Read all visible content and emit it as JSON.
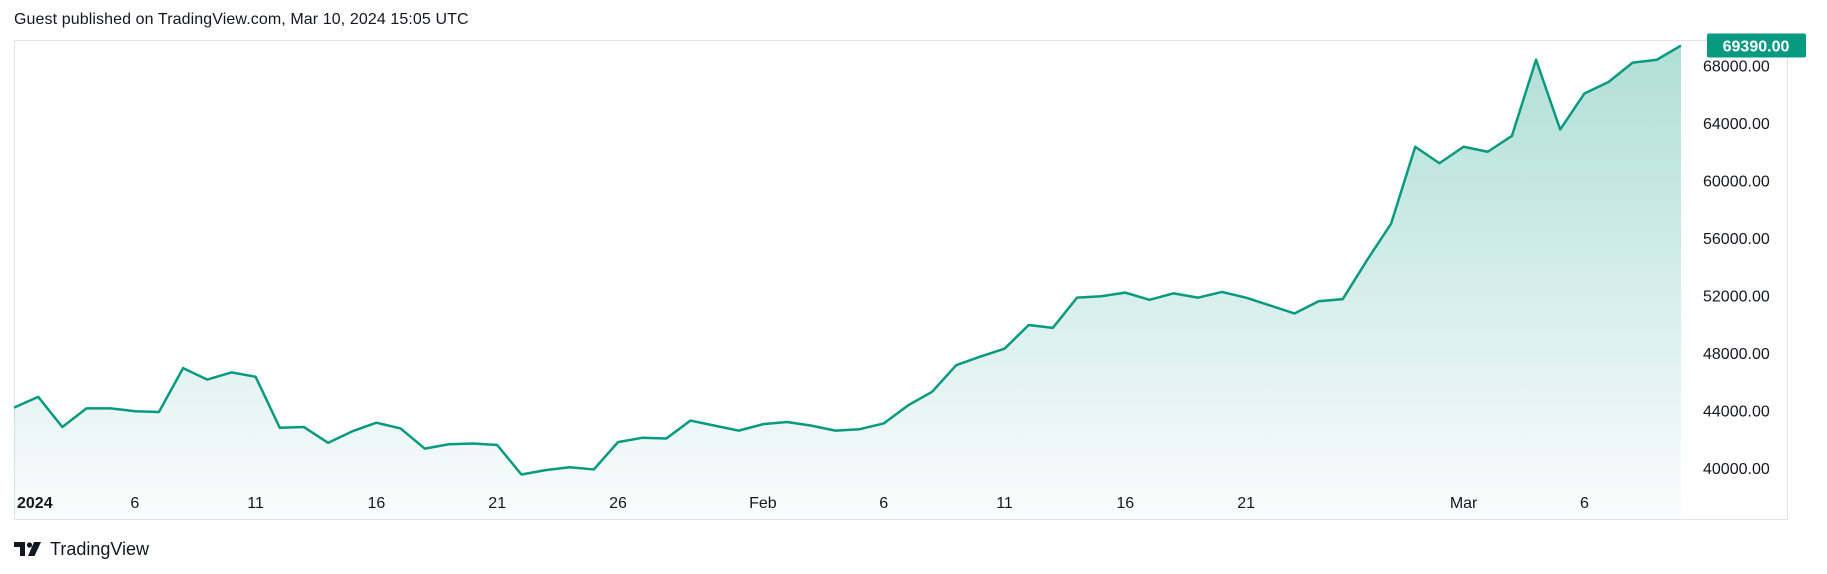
{
  "header": {
    "text": "Guest published on TradingView.com, Mar 10, 2024 15:05 UTC"
  },
  "footer": {
    "brand": "TradingView",
    "logo_icon": "tradingview-logo-icon"
  },
  "colors": {
    "line": "#089981",
    "fill_top": "#089981",
    "label_bg": "#089981",
    "text": "#131722",
    "border": "#e0e3eb"
  },
  "last_price_label": "69390.00",
  "chart_data": {
    "type": "area",
    "title": "",
    "xlabel": "",
    "ylabel": "",
    "ylim": [
      39200,
      70000
    ],
    "y_ticks": [
      "40000.00",
      "44000.00",
      "48000.00",
      "52000.00",
      "56000.00",
      "60000.00",
      "64000.00",
      "68000.00"
    ],
    "x_ticks": [
      {
        "label": "2024",
        "date": "2024-01-01",
        "bold": true
      },
      {
        "label": "6",
        "date": "2024-01-06"
      },
      {
        "label": "11",
        "date": "2024-01-11"
      },
      {
        "label": "16",
        "date": "2024-01-16"
      },
      {
        "label": "21",
        "date": "2024-01-21"
      },
      {
        "label": "26",
        "date": "2024-01-26"
      },
      {
        "label": "Feb",
        "date": "2024-02-01"
      },
      {
        "label": "6",
        "date": "2024-02-06"
      },
      {
        "label": "11",
        "date": "2024-02-11"
      },
      {
        "label": "16",
        "date": "2024-02-16"
      },
      {
        "label": "21",
        "date": "2024-02-21"
      },
      {
        "label": "Mar",
        "date": "2024-03-01"
      },
      {
        "label": "6",
        "date": "2024-03-06"
      }
    ],
    "x": [
      "2024-01-01",
      "2024-01-02",
      "2024-01-03",
      "2024-01-04",
      "2024-01-05",
      "2024-01-06",
      "2024-01-07",
      "2024-01-08",
      "2024-01-09",
      "2024-01-10",
      "2024-01-11",
      "2024-01-12",
      "2024-01-13",
      "2024-01-14",
      "2024-01-15",
      "2024-01-16",
      "2024-01-17",
      "2024-01-18",
      "2024-01-19",
      "2024-01-20",
      "2024-01-21",
      "2024-01-22",
      "2024-01-23",
      "2024-01-24",
      "2024-01-25",
      "2024-01-26",
      "2024-01-27",
      "2024-01-28",
      "2024-01-29",
      "2024-01-30",
      "2024-01-31",
      "2024-02-01",
      "2024-02-02",
      "2024-02-03",
      "2024-02-04",
      "2024-02-05",
      "2024-02-06",
      "2024-02-07",
      "2024-02-08",
      "2024-02-09",
      "2024-02-10",
      "2024-02-11",
      "2024-02-12",
      "2024-02-13",
      "2024-02-14",
      "2024-02-15",
      "2024-02-16",
      "2024-02-17",
      "2024-02-18",
      "2024-02-19",
      "2024-02-20",
      "2024-02-21",
      "2024-02-22",
      "2024-02-23",
      "2024-02-24",
      "2024-02-25",
      "2024-02-26",
      "2024-02-27",
      "2024-02-28",
      "2024-02-29",
      "2024-03-01",
      "2024-03-02",
      "2024-03-03",
      "2024-03-04",
      "2024-03-05",
      "2024-03-06",
      "2024-03-07",
      "2024-03-08",
      "2024-03-09",
      "2024-03-10"
    ],
    "series": [
      {
        "values": [
          44200,
          44950,
          42850,
          44150,
          44150,
          43950,
          43900,
          46950,
          46150,
          46650,
          46350,
          42800,
          42850,
          41750,
          42550,
          43150,
          42750,
          41350,
          41650,
          41700,
          41600,
          39550,
          39850,
          40050,
          39900,
          41800,
          42100,
          42050,
          43300,
          42950,
          42600,
          43050,
          43200,
          42950,
          42600,
          42700,
          43100,
          44350,
          45300,
          47150,
          47750,
          48300,
          49950,
          49750,
          51850,
          51950,
          52200,
          51700,
          52150,
          51850,
          52250,
          51850,
          51300,
          50750,
          51600,
          51750,
          54450,
          57000,
          62350,
          61200,
          62350,
          62000,
          63100,
          68400,
          63550,
          66050,
          66850,
          68200,
          68400,
          69390
        ]
      }
    ]
  }
}
